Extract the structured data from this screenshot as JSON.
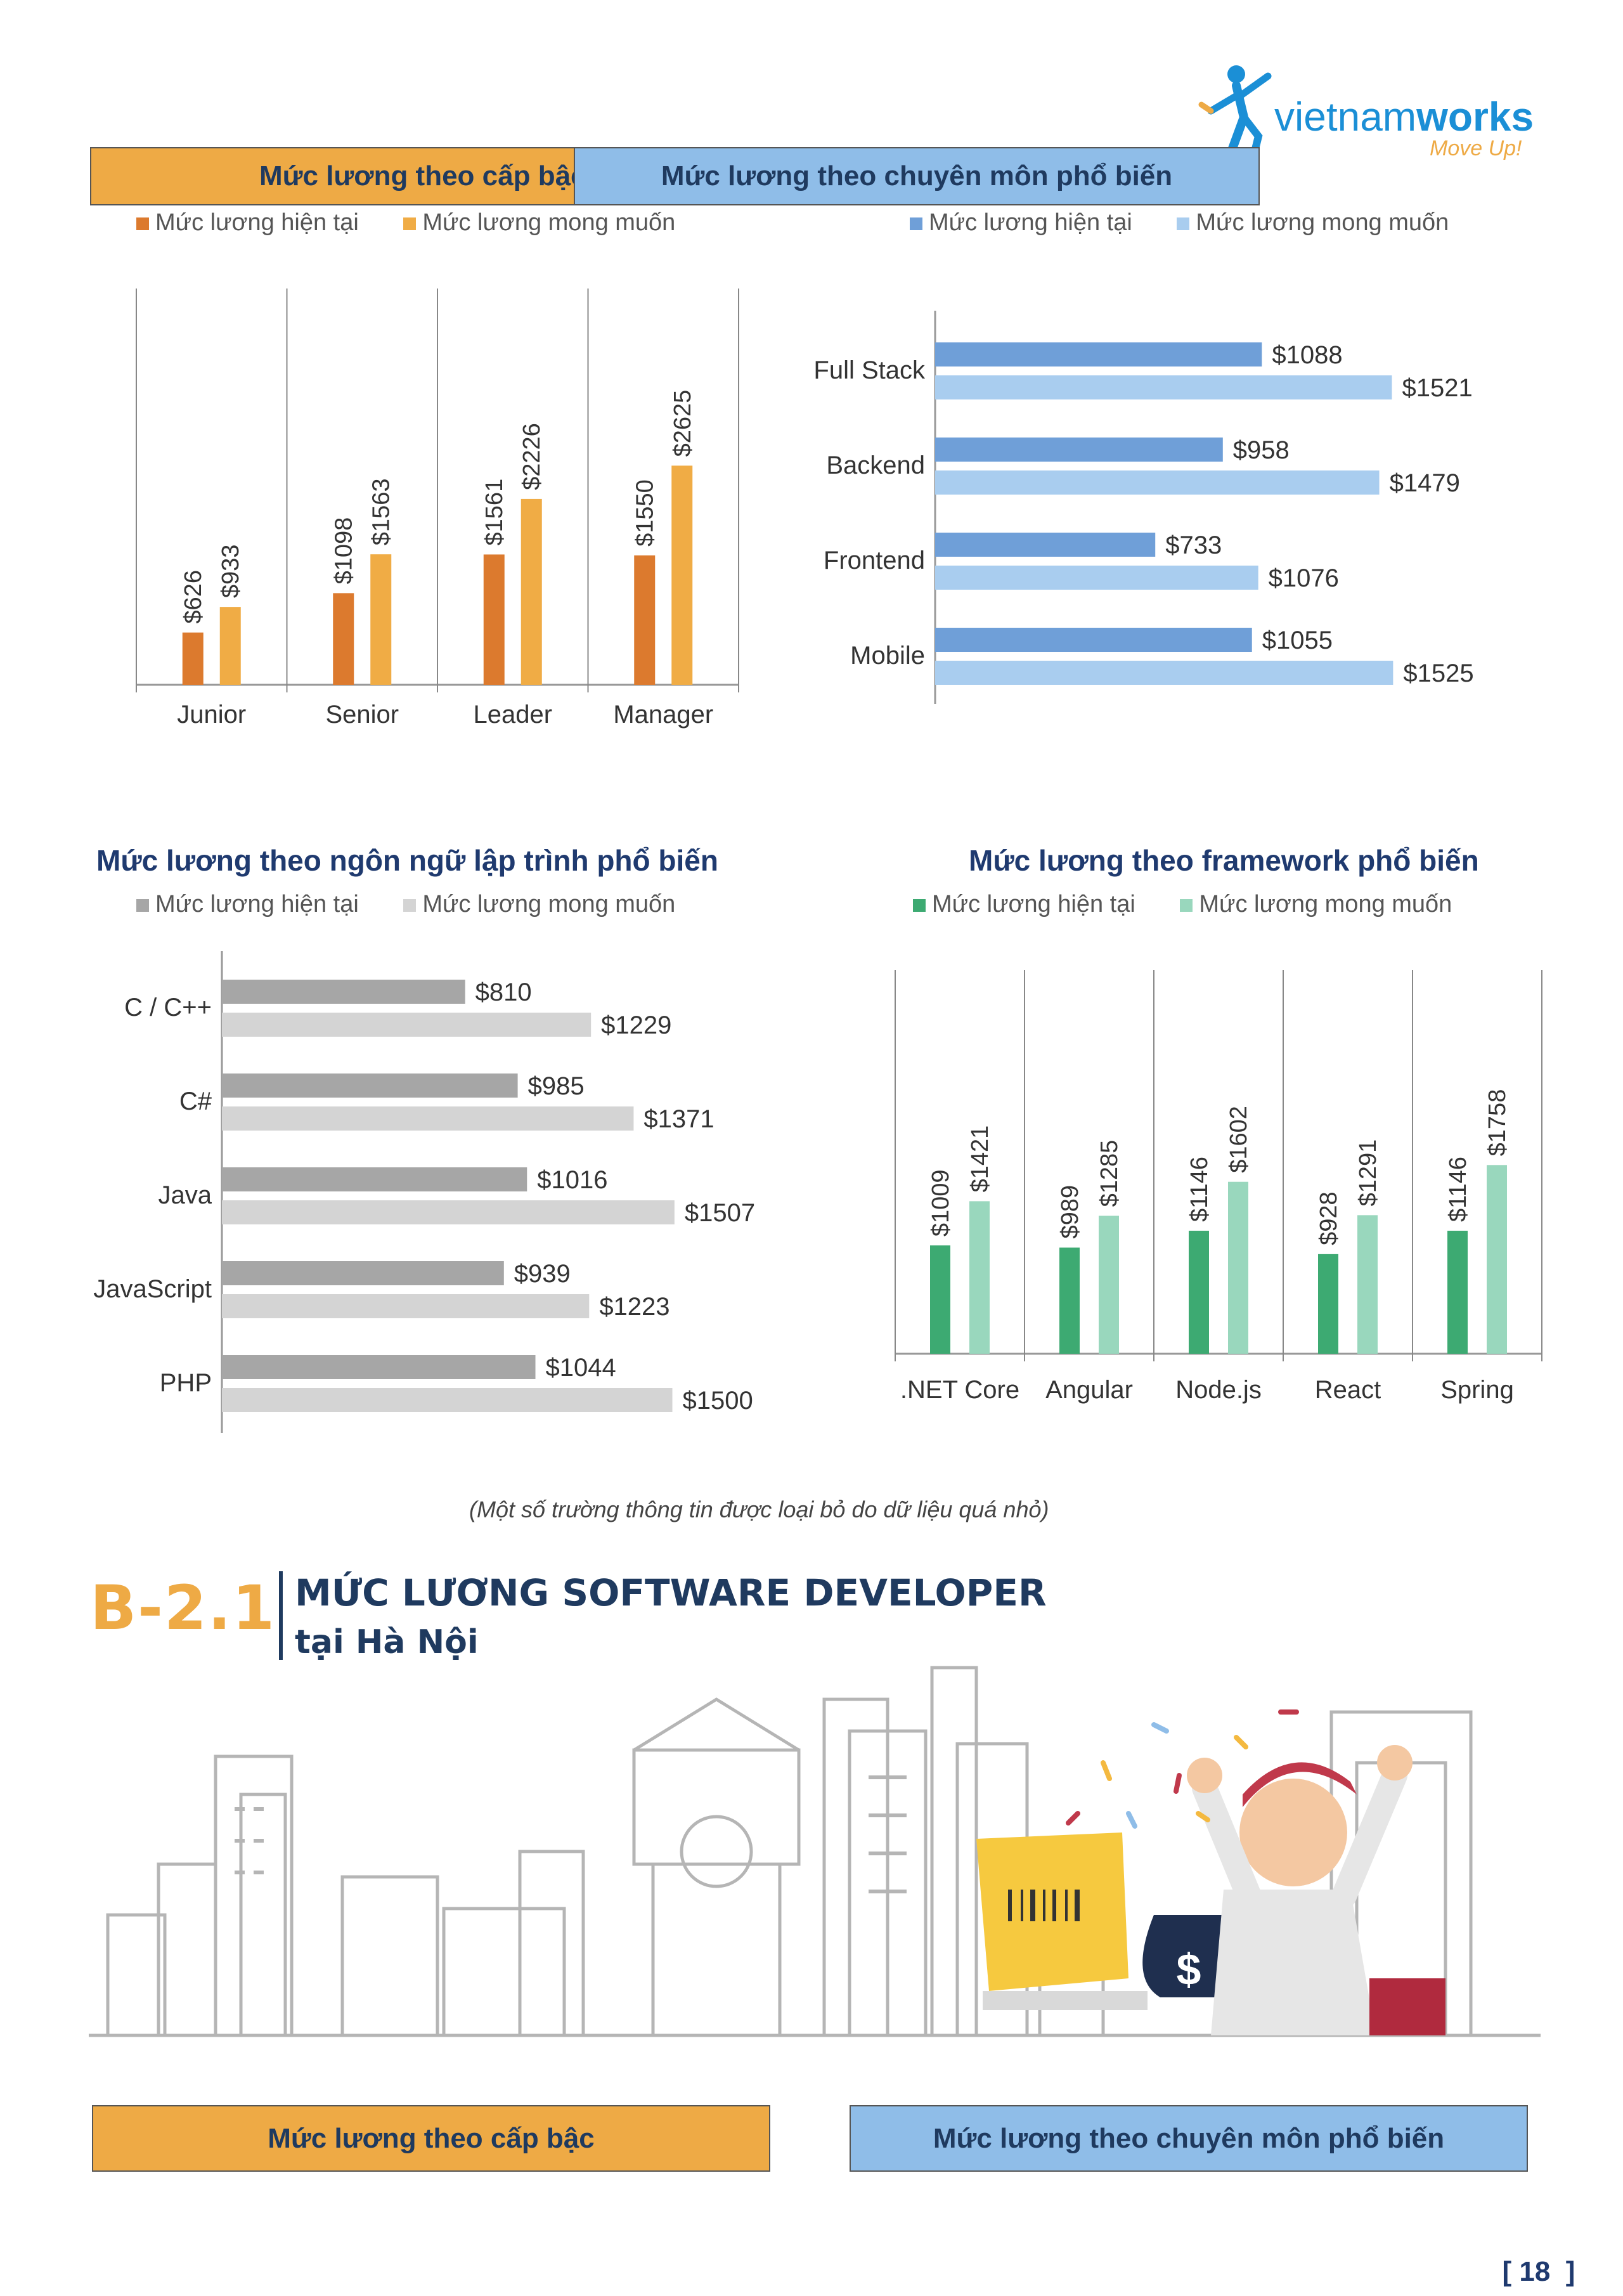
{
  "logo": {
    "brand_light": "vietnam",
    "brand_bold": "works",
    "tagline": "Move Up!"
  },
  "top_headers": {
    "level": "Mức lương theo cấp bậc",
    "specialty": "Mức lương theo chuyên môn phổ biến"
  },
  "legends": {
    "current": "Mức lương hiện tại",
    "expected": "Mức lương mong muốn"
  },
  "section_titles": {
    "languages": "Mức lương theo ngôn ngữ lập trình phổ biến",
    "frameworks": "Mức lương theo framework phổ biến"
  },
  "note": "(Một số trường thông tin được loại bỏ do dữ liệu quá nhỏ)",
  "b21": {
    "code": "B-2.1",
    "title": "MỨC LƯƠNG SOFTWARE DEVELOPER",
    "subtitle": "tại Hà Nội"
  },
  "bottom_headers": {
    "level": "Mức lương theo cấp bậc",
    "specialty": "Mức lương theo chuyên môn phổ biến"
  },
  "page_number": "18",
  "colors": {
    "orange_dark": "#dc7a2e",
    "orange_light": "#f0ac45",
    "blue_dark": "#6f9fd8",
    "blue_light": "#a9cdef",
    "gray_dark": "#a6a6a6",
    "gray_light": "#d4d4d4",
    "green_dark": "#3daa72",
    "green_light": "#99d7bd",
    "brand_blue": "#1b8fd6",
    "brand_orange": "#eeaa45"
  },
  "chart_data": [
    {
      "type": "bar",
      "orientation": "vertical",
      "categories": [
        "Junior",
        "Senior",
        "Leader",
        "Manager"
      ],
      "series": [
        {
          "name": "Mức lương hiện tại",
          "values": [
            626,
            1098,
            1561,
            1550
          ],
          "labels": [
            "$626",
            "$1098",
            "$1561",
            "$1550"
          ]
        },
        {
          "name": "Mức lương mong muốn",
          "values": [
            933,
            1563,
            2226,
            2625
          ],
          "labels": [
            "$933",
            "$1563",
            "$2226",
            "$2625"
          ]
        }
      ],
      "ylim": [
        0,
        3000
      ],
      "grid": false,
      "legend": "top"
    },
    {
      "type": "bar",
      "orientation": "horizontal",
      "categories": [
        "Full Stack",
        "Backend",
        "Frontend",
        "Mobile"
      ],
      "series": [
        {
          "name": "Mức lương hiện tại",
          "values": [
            1088,
            958,
            733,
            1055
          ],
          "labels": [
            "$1088",
            "$958",
            "$733",
            "$1055"
          ]
        },
        {
          "name": "Mức lương mong muốn",
          "values": [
            1521,
            1479,
            1076,
            1525
          ],
          "labels": [
            "$1521",
            "$1479",
            "$1076",
            "$1525"
          ]
        }
      ],
      "xlim": [
        0,
        1900
      ],
      "grid": false,
      "legend": "top"
    },
    {
      "type": "bar",
      "orientation": "horizontal",
      "title": "Mức lương theo ngôn ngữ lập trình phổ biến",
      "categories": [
        "C / C++",
        "C#",
        "Java",
        "JavaScript",
        "PHP"
      ],
      "series": [
        {
          "name": "Mức lương hiện tại",
          "values": [
            810,
            985,
            1016,
            939,
            1044
          ],
          "labels": [
            "$810",
            "$985",
            "$1016",
            "$939",
            "$1044"
          ]
        },
        {
          "name": "Mức lương mong muốn",
          "values": [
            1229,
            1371,
            1507,
            1223,
            1500
          ],
          "labels": [
            "$1229",
            "$1371",
            "$1507",
            "$1223",
            "$1500"
          ]
        }
      ],
      "xlim": [
        0,
        1900
      ],
      "grid": false,
      "legend": "top"
    },
    {
      "type": "bar",
      "orientation": "vertical",
      "title": "Mức lương theo framework phổ biến",
      "categories": [
        ".NET Core",
        "Angular",
        "Node.js",
        "React",
        "Spring"
      ],
      "series": [
        {
          "name": "Mức lương hiện tại",
          "values": [
            1009,
            989,
            1146,
            928,
            1146
          ],
          "labels": [
            "$1009",
            "$989",
            "$1146",
            "$928",
            "$1146"
          ]
        },
        {
          "name": "Mức lương mong muốn",
          "values": [
            1421,
            1285,
            1602,
            1291,
            1758
          ],
          "labels": [
            "$1421",
            "$1285",
            "$1602",
            "$1291",
            "$1758"
          ]
        }
      ],
      "ylim": [
        0,
        2500
      ],
      "grid": false,
      "legend": "top"
    }
  ]
}
